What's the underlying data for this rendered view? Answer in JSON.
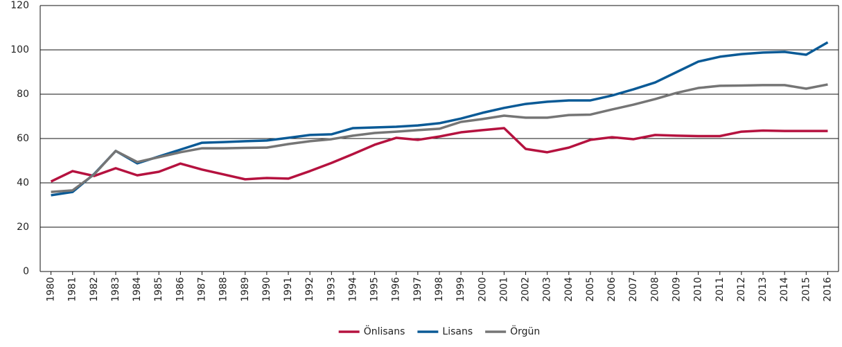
{
  "chart_data": {
    "type": "line",
    "categories": [
      "1980",
      "1981",
      "1982",
      "1983",
      "1984",
      "1985",
      "1986",
      "1987",
      "1988",
      "1989",
      "1990",
      "1991",
      "1992",
      "1993",
      "1994",
      "1995",
      "1996",
      "1997",
      "1998",
      "1999",
      "2000",
      "2001",
      "2002",
      "2003",
      "2004",
      "2005",
      "2006",
      "2007",
      "2008",
      "2009",
      "2010",
      "2011",
      "2012",
      "2013",
      "2014",
      "2015",
      "2016"
    ],
    "series": [
      {
        "name": "Önlisans",
        "color": "#b5123f",
        "values": [
          40.6,
          45.3,
          43.1,
          46.6,
          43.4,
          45,
          48.7,
          46,
          43.8,
          41.6,
          42.2,
          41.9,
          45.3,
          49,
          53,
          57.2,
          60.3,
          59.4,
          60.9,
          62.8,
          63.8,
          64.7,
          55.3,
          53.8,
          55.9,
          59.4,
          60.6,
          59.7,
          61.6,
          61.3,
          61.1,
          61.1,
          63.1,
          63.6,
          63.4,
          63.4,
          63.4
        ]
      },
      {
        "name": "Lisans",
        "color": "#0a5a96",
        "values": [
          34.4,
          35.9,
          44,
          54.4,
          48.8,
          51.9,
          55,
          58.1,
          58.4,
          58.8,
          59.1,
          60.3,
          61.6,
          61.9,
          64.7,
          65,
          65.3,
          65.9,
          66.9,
          69,
          71.6,
          73.8,
          75.6,
          76.6,
          77.2,
          77.2,
          79.4,
          82.2,
          85.3,
          90,
          94.7,
          96.9,
          98.1,
          98.8,
          99.1,
          97.8,
          103.4
        ]
      },
      {
        "name": "Örgün",
        "color": "#757575",
        "values": [
          35.9,
          36.6,
          43.8,
          54.4,
          49.4,
          51.6,
          53.8,
          55.6,
          55.6,
          55.8,
          55.9,
          57.5,
          58.8,
          59.7,
          61.3,
          62.5,
          63.1,
          63.8,
          64.4,
          67.5,
          68.8,
          70.3,
          69.4,
          69.4,
          70.6,
          70.8,
          73.1,
          75.3,
          77.8,
          80.6,
          82.8,
          83.8,
          83.9,
          84.1,
          84.1,
          82.5,
          84.4
        ]
      }
    ],
    "ylim": [
      0,
      120
    ],
    "yticks": [
      0,
      20,
      40,
      60,
      80,
      100,
      120
    ],
    "grid": true,
    "legend": "bottom"
  }
}
